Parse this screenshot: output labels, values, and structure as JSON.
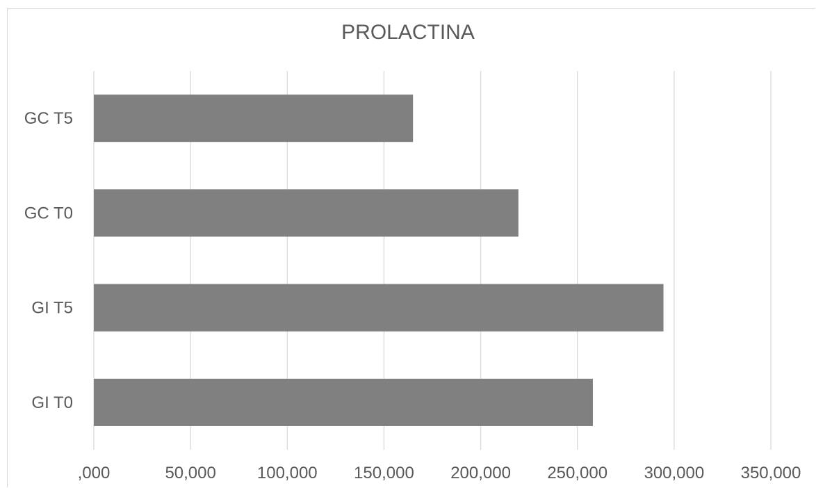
{
  "chart_data": {
    "type": "bar",
    "orientation": "horizontal",
    "title": "PROLACTINA",
    "categories": [
      "GI T0",
      "GI T5",
      "GC T0",
      "GC T5"
    ],
    "values": [
      258000,
      294500,
      219500,
      165000
    ],
    "xlim": [
      0,
      350000
    ],
    "xticks": [
      0,
      50000,
      100000,
      150000,
      200000,
      250000,
      300000,
      350000
    ],
    "xtick_labels": [
      ",000",
      "50,000",
      "100,000",
      "150,000",
      "200,000",
      "250,000",
      "300,000",
      "350,000"
    ],
    "xlabel": "",
    "ylabel": "",
    "grid": "vertical",
    "legend": "none",
    "bar_color": "#808080",
    "grid_color": "#d9d9d9"
  }
}
